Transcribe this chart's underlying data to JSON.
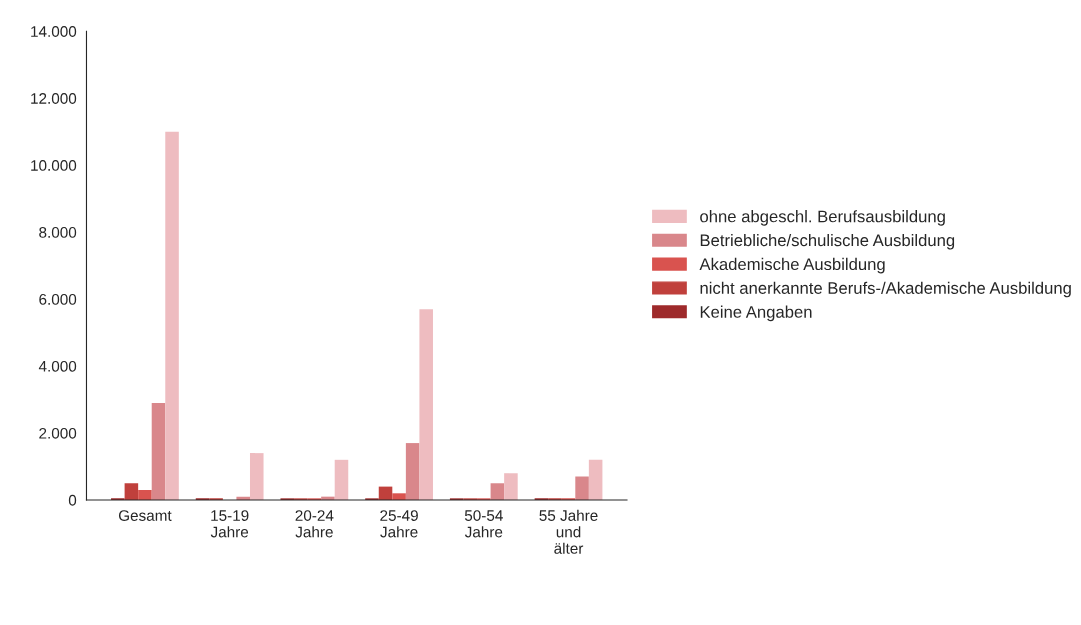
{
  "chart_data": {
    "type": "bar",
    "categories": [
      "Gesamt",
      "15-19\nJahre",
      "20-24\nJahre",
      "25-49\nJahre",
      "50-54\nJahre",
      "55 Jahre\nund\nälter"
    ],
    "series": [
      {
        "name": "Keine Angaben",
        "color": "#9e2a2b",
        "values": [
          50,
          50,
          50,
          50,
          50,
          50
        ]
      },
      {
        "name": "nicht anerkannte Berufs-/Akademische Ausbildung",
        "color": "#c0403c",
        "values": [
          500,
          50,
          50,
          400,
          50,
          50
        ]
      },
      {
        "name": "Akademische Ausbildung",
        "color": "#d9534f",
        "values": [
          300,
          0,
          50,
          200,
          50,
          50
        ]
      },
      {
        "name": "Betriebliche/schulische Ausbildung",
        "color": "#d9878b",
        "values": [
          2900,
          100,
          100,
          1700,
          500,
          700
        ]
      },
      {
        "name": "ohne abgeschl. Berufsausbildung",
        "color": "#eebcc0",
        "values": [
          11000,
          1400,
          1200,
          5700,
          800,
          1200
        ]
      }
    ],
    "ylim": [
      0,
      14000
    ],
    "yticks": [
      {
        "value": 0,
        "label": "0"
      },
      {
        "value": 2000,
        "label": "2.000"
      },
      {
        "value": 4000,
        "label": "4.000"
      },
      {
        "value": 6000,
        "label": "6.000"
      },
      {
        "value": 8000,
        "label": "8.000"
      },
      {
        "value": 10000,
        "label": "10.000"
      },
      {
        "value": 12000,
        "label": "12.000"
      },
      {
        "value": 14000,
        "label": "14.000"
      }
    ],
    "grid": false,
    "legend": "right"
  }
}
